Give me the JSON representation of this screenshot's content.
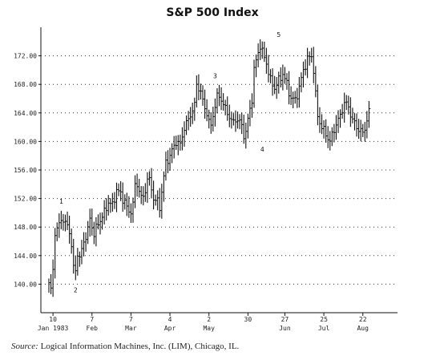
{
  "source": {
    "label": "Source:",
    "text": "Logical Information Machines, Inc. (LIM), Chicago, IL."
  },
  "chart_data": {
    "type": "bar",
    "style": "ohlc-bars",
    "title": "S&P 500 Index",
    "xlabel": "",
    "ylabel": "",
    "ylim": [
      136,
      176
    ],
    "xlim": [
      0,
      166
    ],
    "grid": "dotted-horizontal",
    "legend": "none",
    "y_ticks": [
      "140.00",
      "144.00",
      "148.00",
      "152.00",
      "156.00",
      "160.00",
      "164.00",
      "168.00",
      "172.00"
    ],
    "y_tick_values": [
      140,
      144,
      148,
      152,
      156,
      160,
      164,
      168,
      172
    ],
    "x_ticks": [
      {
        "day": 2,
        "top": "10",
        "bottom": "Jan 1983"
      },
      {
        "day": 21,
        "top": "7",
        "bottom": "Feb"
      },
      {
        "day": 40,
        "top": "7",
        "bottom": "Mar"
      },
      {
        "day": 59,
        "top": "4",
        "bottom": "Apr"
      },
      {
        "day": 78,
        "top": "2",
        "bottom": "May"
      },
      {
        "day": 97,
        "top": "30",
        "bottom": ""
      },
      {
        "day": 115,
        "top": "27",
        "bottom": "Jun"
      },
      {
        "day": 134,
        "top": "25",
        "bottom": "Jul"
      },
      {
        "day": 153,
        "top": "22",
        "bottom": "Aug"
      }
    ],
    "wave_labels": [
      {
        "label": "1",
        "day": 6,
        "value": 151.6
      },
      {
        "label": "2",
        "day": 13,
        "value": 139.2
      },
      {
        "label": "3",
        "day": 81,
        "value": 169.2
      },
      {
        "label": "4",
        "day": 104,
        "value": 158.9
      },
      {
        "label": "5",
        "day": 112,
        "value": 175.0
      }
    ],
    "anchors": [
      [
        0,
        140.2
      ],
      [
        1,
        139.0
      ],
      [
        2,
        142.2
      ],
      [
        3,
        147.2
      ],
      [
        5,
        148.2
      ],
      [
        6,
        149.3
      ],
      [
        8,
        148.5
      ],
      [
        10,
        147.6
      ],
      [
        11,
        145.2
      ],
      [
        12,
        142.3
      ],
      [
        13,
        141.8
      ],
      [
        14,
        144.5
      ],
      [
        15,
        143.5
      ],
      [
        17,
        146.0
      ],
      [
        19,
        147.5
      ],
      [
        20,
        149.2
      ],
      [
        22,
        147.0
      ],
      [
        24,
        148.5
      ],
      [
        27,
        150.0
      ],
      [
        29,
        151.5
      ],
      [
        31,
        151.0
      ],
      [
        33,
        153.2
      ],
      [
        35,
        152.6
      ],
      [
        37,
        151.5
      ],
      [
        39,
        150.0
      ],
      [
        41,
        151.0
      ],
      [
        42,
        154.0
      ],
      [
        44,
        153.5
      ],
      [
        45,
        151.8
      ],
      [
        47,
        153.0
      ],
      [
        48,
        155.0
      ],
      [
        50,
        153.5
      ],
      [
        51,
        152.0
      ],
      [
        53,
        151.5
      ],
      [
        54,
        150.8
      ],
      [
        55,
        153.0
      ],
      [
        57,
        157.0
      ],
      [
        59,
        158.0
      ],
      [
        62,
        160.0
      ],
      [
        64,
        159.5
      ],
      [
        66,
        162.0
      ],
      [
        68,
        163.0
      ],
      [
        70,
        164.5
      ],
      [
        71,
        165.0
      ],
      [
        72,
        168.0
      ],
      [
        74,
        167.0
      ],
      [
        75,
        165.5
      ],
      [
        77,
        164.0
      ],
      [
        78,
        162.8
      ],
      [
        79,
        162.0
      ],
      [
        80,
        163.8
      ],
      [
        82,
        166.3
      ],
      [
        84,
        166.0
      ],
      [
        86,
        164.5
      ],
      [
        88,
        163.5
      ],
      [
        90,
        162.5
      ],
      [
        91,
        163.2
      ],
      [
        93,
        162.8
      ],
      [
        94,
        162.0
      ],
      [
        95,
        161.0
      ],
      [
        96,
        161.3
      ],
      [
        97,
        163.0
      ],
      [
        99,
        166.0
      ],
      [
        100,
        170.0
      ],
      [
        102,
        172.5
      ],
      [
        103,
        173.5
      ],
      [
        104,
        172.5
      ],
      [
        106,
        171.0
      ],
      [
        108,
        168.5
      ],
      [
        110,
        167.5
      ],
      [
        112,
        168.5
      ],
      [
        114,
        169.5
      ],
      [
        116,
        168.0
      ],
      [
        118,
        166.0
      ],
      [
        120,
        165.8
      ],
      [
        122,
        167.5
      ],
      [
        124,
        170.0
      ],
      [
        126,
        171.5
      ],
      [
        128,
        172.0
      ],
      [
        129,
        170.0
      ],
      [
        130,
        166.5
      ],
      [
        131,
        163.5
      ],
      [
        133,
        162.0
      ],
      [
        135,
        161.0
      ],
      [
        137,
        160.0
      ],
      [
        138,
        160.8
      ],
      [
        140,
        162.5
      ],
      [
        142,
        163.5
      ],
      [
        144,
        165.5
      ],
      [
        146,
        164.8
      ],
      [
        148,
        163.0
      ],
      [
        150,
        162.0
      ],
      [
        152,
        161.5
      ],
      [
        153,
        161.0
      ],
      [
        155,
        163.0
      ],
      [
        156,
        164.2
      ]
    ]
  }
}
